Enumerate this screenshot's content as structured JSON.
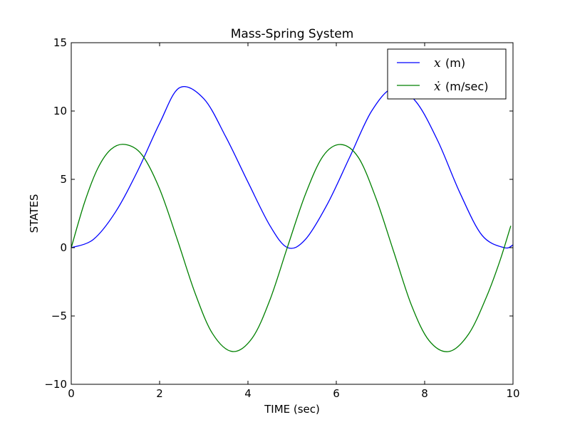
{
  "chart_data": {
    "type": "line",
    "title": "Mass-Spring System",
    "xlabel": "TIME (sec)",
    "ylabel": "STATES",
    "xlim": [
      0,
      10
    ],
    "ylim": [
      -10,
      15
    ],
    "xticks": [
      0,
      2,
      4,
      6,
      8,
      10
    ],
    "yticks": [
      -10,
      -5,
      0,
      5,
      10,
      15
    ],
    "xtick_labels": [
      "0",
      "2",
      "4",
      "6",
      "8",
      "10"
    ],
    "ytick_labels": [
      "−10",
      "−5",
      "0",
      "5",
      "10",
      "15"
    ],
    "grid": false,
    "legend_position": "top-right",
    "series": [
      {
        "name": "x (m)",
        "legend_symbol": "x",
        "legend_text": "(m)",
        "color": "#0000ff",
        "x": [
          0,
          0.5,
          1.0,
          1.5,
          2.0,
          2.45,
          3.0,
          3.5,
          4.0,
          4.5,
          4.9,
          5.3,
          5.8,
          6.3,
          6.8,
          7.3,
          7.8,
          8.3,
          8.8,
          9.3,
          9.8,
          10.0
        ],
        "y": [
          0,
          0.6,
          2.6,
          5.6,
          9.1,
          11.7,
          10.9,
          8.1,
          4.8,
          1.6,
          0,
          0.6,
          3.2,
          6.6,
          10.0,
          11.7,
          10.7,
          7.8,
          4.0,
          0.9,
          0,
          0.2
        ]
      },
      {
        "name": "ẋ (m/sec)",
        "legend_symbol": "ẋ",
        "legend_text": "(m/sec)",
        "color": "#008000",
        "x": [
          0,
          0.3,
          0.6,
          0.9,
          1.22,
          1.6,
          2.0,
          2.4,
          2.8,
          3.2,
          3.65,
          4.1,
          4.5,
          4.9,
          5.3,
          5.7,
          6.1,
          6.5,
          6.9,
          7.3,
          7.7,
          8.1,
          8.55,
          9.0,
          9.4,
          9.7,
          9.95
        ],
        "y": [
          0,
          3.3,
          5.8,
          7.2,
          7.55,
          6.8,
          4.3,
          0.6,
          -3.3,
          -6.3,
          -7.6,
          -6.6,
          -3.8,
          0.1,
          3.9,
          6.7,
          7.55,
          6.6,
          3.6,
          -0.3,
          -4.2,
          -6.8,
          -7.6,
          -6.3,
          -3.6,
          -1.0,
          1.6
        ]
      }
    ]
  }
}
